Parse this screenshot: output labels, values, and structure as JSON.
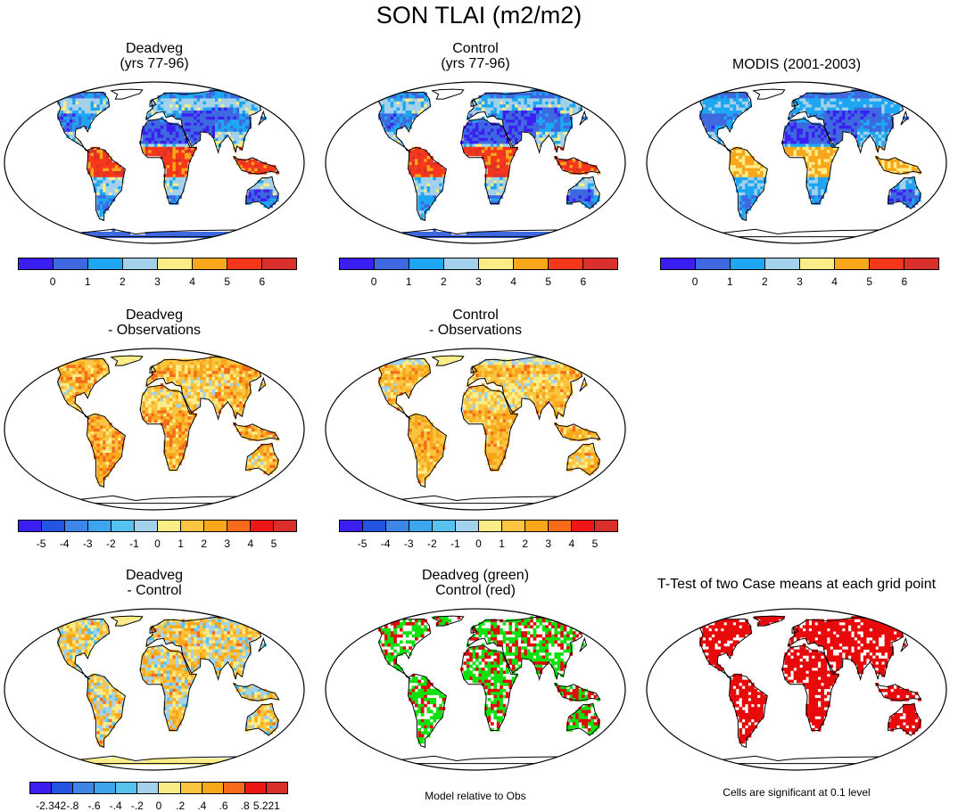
{
  "title": "SON TLAI (m2/m2)",
  "panels": [
    {
      "id": "p1",
      "title_lines": [
        "Deadveg",
        "(yrs 77-96)"
      ],
      "palette": "abs",
      "variant": "deadveg"
    },
    {
      "id": "p2",
      "title_lines": [
        "Control",
        "(yrs 77-96)"
      ],
      "palette": "abs",
      "variant": "control"
    },
    {
      "id": "p3",
      "title_lines": [
        "MODIS (2001-2003)"
      ],
      "palette": "abs",
      "variant": "modis"
    },
    {
      "id": "p4",
      "title_lines": [
        "Deadveg",
        "- Observations"
      ],
      "palette": "diff",
      "variant": "dobs"
    },
    {
      "id": "p5",
      "title_lines": [
        "Control",
        "- Observations"
      ],
      "palette": "diff",
      "variant": "cobs"
    },
    {
      "id": "p6",
      "title_lines": [
        "Deadveg",
        "- Control"
      ],
      "palette": "small",
      "variant": "dminusc"
    },
    {
      "id": "p7",
      "title_lines": [
        "Deadveg (green)",
        "Control (red)"
      ],
      "palette": "compare",
      "variant": "compare"
    },
    {
      "id": "p8",
      "title_lines": [
        "T-Test of two Case means at each grid point"
      ],
      "palette": "ttest",
      "variant": "ttest"
    }
  ],
  "colorbars": {
    "abs": {
      "colors": [
        "#3a1ef2",
        "#3d68e0",
        "#1ea6f3",
        "#a3d1ec",
        "#faec86",
        "#f8a61a",
        "#f63719",
        "#d9302c"
      ],
      "ticks": [
        "0",
        "1",
        "2",
        "3",
        "4",
        "5",
        "6"
      ]
    },
    "diff": {
      "colors": [
        "#3a1ef2",
        "#2554e3",
        "#3d85e6",
        "#3da4ee",
        "#58c2ef",
        "#a3d1ec",
        "#faec86",
        "#fbc541",
        "#f8a61a",
        "#f56b1a",
        "#ef1616",
        "#d9302c"
      ],
      "ticks": [
        "-5",
        "-4",
        "-3",
        "-2",
        "-1",
        "0",
        "1",
        "2",
        "3",
        "4",
        "5"
      ]
    },
    "small": {
      "colors": [
        "#3a1ef2",
        "#2554e3",
        "#3d85e6",
        "#3da4ee",
        "#58c2ef",
        "#a3d1ec",
        "#faec86",
        "#fbc541",
        "#f8a61a",
        "#f56b1a",
        "#ef1616",
        "#d9302c"
      ],
      "ticks": [
        "-2.342",
        "-.8",
        "-.6",
        "-.4",
        "-.2",
        "0",
        ".2",
        ".4",
        ".6",
        ".8",
        "5.221"
      ]
    }
  },
  "notes": {
    "compare": "Model relative to Obs",
    "ttest": "Cells are significant at 0.1 level"
  },
  "chart_data": [
    {
      "type": "heatmap",
      "title": "Deadveg (yrs 77-96)",
      "value_range": [
        0,
        6
      ],
      "unit": "m2/m2",
      "summary_values": {
        "tropical_rainforest": 6,
        "boreal": 1,
        "desert": 0
      }
    },
    {
      "type": "heatmap",
      "title": "Control (yrs 77-96)",
      "value_range": [
        0,
        6
      ],
      "unit": "m2/m2",
      "summary_values": {
        "tropical_rainforest": 6,
        "boreal": 1,
        "desert": 0
      }
    },
    {
      "type": "heatmap",
      "title": "MODIS (2001-2003)",
      "value_range": [
        0,
        6
      ],
      "unit": "m2/m2",
      "summary_values": {
        "tropical_rainforest": 5,
        "boreal": 1,
        "desert": 0
      }
    },
    {
      "type": "heatmap",
      "title": "Deadveg - Observations",
      "value_range": [
        -5,
        5
      ],
      "summary_values": {
        "tropics": 3,
        "boreal": 2,
        "desert": 0
      }
    },
    {
      "type": "heatmap",
      "title": "Control - Observations",
      "value_range": [
        -5,
        5
      ],
      "summary_values": {
        "tropics": 3,
        "boreal": 1,
        "desert": 0
      }
    },
    {
      "type": "heatmap",
      "title": "Deadveg - Control",
      "value_range": [
        -2.342,
        5.221
      ],
      "summary_values": {
        "antarctica": 0.2,
        "boreal": 0.4,
        "tropics": 0.2
      }
    },
    {
      "type": "heatmap",
      "title": "Deadveg (green) Control (red)",
      "categories": [
        "Deadveg",
        "Control"
      ]
    },
    {
      "type": "heatmap",
      "title": "T-Test of two Case means at each grid point",
      "significance_level": 0.1
    }
  ]
}
